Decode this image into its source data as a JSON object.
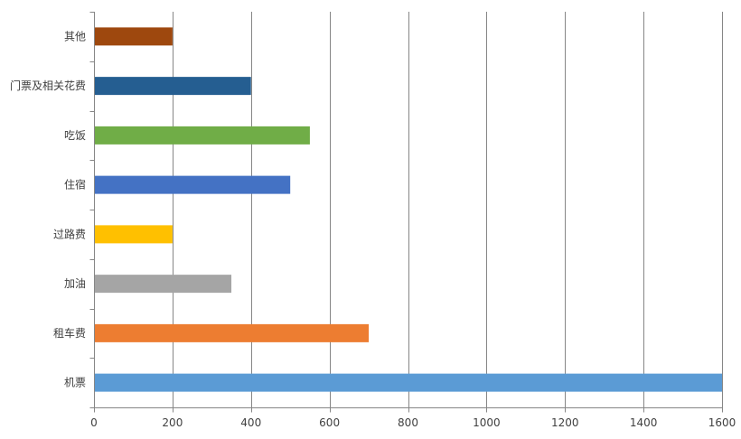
{
  "chart_data": {
    "type": "bar",
    "orientation": "horizontal",
    "title": "",
    "xlabel": "",
    "ylabel": "",
    "xlim": [
      0,
      1600
    ],
    "x_ticks": [
      0,
      200,
      400,
      600,
      800,
      1000,
      1200,
      1400,
      1600
    ],
    "grid": "vertical",
    "legend": "none",
    "categories": [
      "其他",
      "门票及相关花费",
      "吃饭",
      "住宿",
      "过路费",
      "加油",
      "租车费",
      "机票"
    ],
    "values": [
      200,
      400,
      550,
      500,
      200,
      350,
      700,
      1600
    ],
    "colors": [
      "#9E480E",
      "#255E91",
      "#70AD47",
      "#4472C4",
      "#FFC000",
      "#A5A5A5",
      "#ED7D31",
      "#5B9BD5"
    ]
  }
}
